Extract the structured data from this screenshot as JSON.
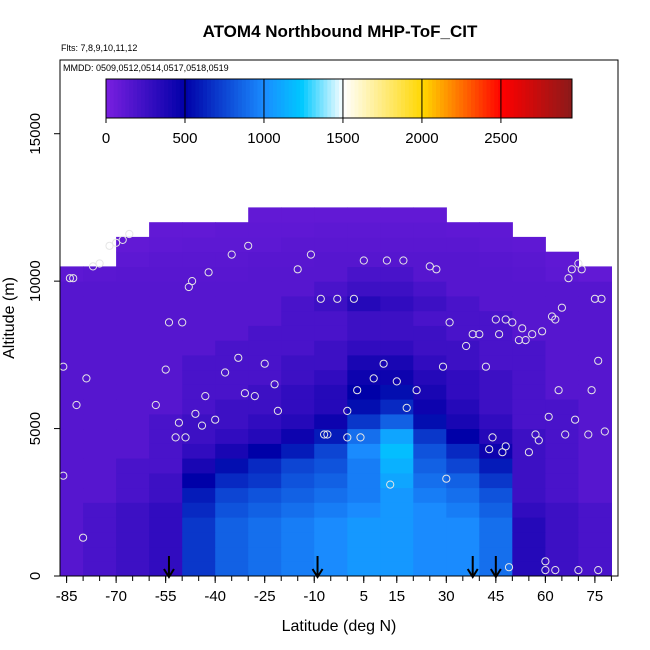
{
  "chart_data": {
    "type": "heatmap",
    "title": "ATOM4 Northbound MHP-ToF_CIT",
    "flights_label": "Flts: 7,8,9,10,11,12",
    "dates_label": "MMDD: 0509,0512,0514,0517,0518,0519",
    "xlabel": "Latitude (deg N)",
    "ylabel": "Altitude (m)",
    "xlim": [
      -87,
      82
    ],
    "ylim": [
      0,
      17500
    ],
    "x_ticks": [
      -85,
      -70,
      -55,
      -40,
      -25,
      -10,
      5,
      15,
      30,
      45,
      60,
      75
    ],
    "x_minor_step": 5,
    "y_ticks": [
      0,
      5000,
      10000,
      15000
    ],
    "colorbar": {
      "ticks": [
        0,
        500,
        1000,
        1500,
        2000,
        2500
      ],
      "range": [
        0,
        2950
      ],
      "colors": [
        "#7a1fe0",
        "#0000a8",
        "#1a8cff",
        "#00c8ff",
        "#ffffff",
        "#ffd700",
        "#ff0000",
        "#8b1a1a"
      ],
      "stops": [
        0,
        0.17,
        0.34,
        0.42,
        0.51,
        0.68,
        0.85,
        1.0
      ]
    },
    "lat_bins": [
      -85,
      -75,
      -65,
      -55,
      -45,
      -35,
      -25,
      -15,
      -5,
      5,
      15,
      25,
      35,
      45,
      55,
      65,
      75
    ],
    "alt_bins": [
      250,
      750,
      1250,
      1750,
      2250,
      2750,
      3250,
      3750,
      4250,
      4750,
      5250,
      5750,
      6250,
      6750,
      7250,
      7750,
      8250,
      8750,
      9250,
      9750,
      10250,
      10750,
      11250,
      11750,
      12250
    ],
    "grid_values": [
      [
        150,
        200,
        250,
        300,
        700,
        850,
        900,
        950,
        1000,
        1050,
        1050,
        1000,
        1000,
        900,
        350,
        250,
        200
      ],
      [
        150,
        200,
        250,
        300,
        700,
        850,
        900,
        950,
        1000,
        1050,
        1050,
        1000,
        1000,
        900,
        350,
        250,
        200
      ],
      [
        150,
        200,
        250,
        300,
        700,
        850,
        900,
        950,
        1000,
        1050,
        1050,
        1000,
        1000,
        900,
        350,
        250,
        200
      ],
      [
        150,
        200,
        250,
        300,
        700,
        850,
        900,
        950,
        1000,
        1050,
        1050,
        1000,
        1000,
        900,
        350,
        250,
        200
      ],
      [
        150,
        200,
        250,
        300,
        650,
        800,
        850,
        900,
        950,
        1000,
        1050,
        1000,
        950,
        850,
        300,
        250,
        200
      ],
      [
        150,
        150,
        200,
        250,
        600,
        750,
        800,
        850,
        900,
        950,
        1050,
        950,
        900,
        800,
        250,
        200,
        150
      ],
      [
        150,
        150,
        200,
        250,
        500,
        650,
        700,
        800,
        850,
        950,
        1100,
        900,
        850,
        700,
        250,
        200,
        150
      ],
      [
        150,
        150,
        200,
        200,
        400,
        550,
        650,
        750,
        800,
        950,
        1150,
        850,
        750,
        600,
        250,
        200,
        150
      ],
      [
        150,
        150,
        150,
        200,
        300,
        400,
        500,
        600,
        750,
        1000,
        1200,
        800,
        650,
        450,
        250,
        200,
        150
      ],
      [
        150,
        150,
        150,
        200,
        250,
        300,
        350,
        450,
        600,
        900,
        1100,
        700,
        500,
        350,
        250,
        200,
        150
      ],
      [
        150,
        150,
        150,
        200,
        250,
        250,
        300,
        350,
        450,
        700,
        850,
        550,
        400,
        300,
        200,
        200,
        150
      ],
      [
        150,
        150,
        150,
        150,
        200,
        250,
        250,
        300,
        350,
        550,
        650,
        450,
        350,
        250,
        200,
        200,
        150
      ],
      [
        150,
        150,
        150,
        150,
        200,
        200,
        250,
        300,
        350,
        500,
        550,
        400,
        300,
        250,
        200,
        150,
        150
      ],
      [
        150,
        150,
        150,
        150,
        200,
        200,
        200,
        250,
        300,
        450,
        450,
        350,
        300,
        250,
        200,
        150,
        150
      ],
      [
        150,
        150,
        150,
        150,
        200,
        200,
        200,
        250,
        250,
        400,
        400,
        300,
        250,
        200,
        200,
        150,
        150
      ],
      [
        150,
        150,
        150,
        150,
        150,
        200,
        200,
        200,
        250,
        300,
        300,
        250,
        250,
        200,
        200,
        150,
        150
      ],
      [
        150,
        150,
        150,
        150,
        150,
        150,
        200,
        200,
        200,
        250,
        250,
        250,
        200,
        200,
        150,
        150,
        150
      ],
      [
        150,
        150,
        150,
        150,
        150,
        150,
        150,
        200,
        200,
        250,
        250,
        200,
        200,
        200,
        150,
        150,
        150
      ],
      [
        150,
        150,
        150,
        150,
        150,
        150,
        150,
        200,
        250,
        350,
        300,
        250,
        200,
        150,
        150,
        150,
        150
      ],
      [
        150,
        150,
        150,
        150,
        150,
        150,
        150,
        150,
        200,
        250,
        250,
        200,
        150,
        150,
        150,
        150,
        150
      ],
      [
        120,
        130,
        140,
        140,
        140,
        140,
        150,
        150,
        150,
        200,
        200,
        150,
        150,
        150,
        140,
        120,
        100
      ],
      [
        null,
        null,
        120,
        130,
        130,
        130,
        140,
        140,
        150,
        150,
        150,
        150,
        150,
        140,
        130,
        110,
        null
      ],
      [
        null,
        null,
        100,
        110,
        120,
        120,
        120,
        130,
        130,
        130,
        130,
        130,
        130,
        120,
        110,
        null,
        null
      ],
      [
        null,
        null,
        null,
        100,
        100,
        110,
        110,
        110,
        120,
        120,
        120,
        120,
        110,
        110,
        null,
        null,
        null
      ],
      [
        null,
        null,
        null,
        null,
        null,
        null,
        100,
        100,
        100,
        100,
        100,
        100,
        null,
        null,
        null,
        null,
        null
      ]
    ],
    "samples": [
      {
        "lat": -86,
        "alt": 7100
      },
      {
        "lat": -86,
        "alt": 3400
      },
      {
        "lat": -84,
        "alt": 10100
      },
      {
        "lat": -83,
        "alt": 10100
      },
      {
        "lat": -82,
        "alt": 5800
      },
      {
        "lat": -80,
        "alt": 1300
      },
      {
        "lat": -79,
        "alt": 6700
      },
      {
        "lat": -77,
        "alt": 10500
      },
      {
        "lat": -75,
        "alt": 10600
      },
      {
        "lat": -72,
        "alt": 11200
      },
      {
        "lat": -70,
        "alt": 11300
      },
      {
        "lat": -68,
        "alt": 11400
      },
      {
        "lat": -66,
        "alt": 11600
      },
      {
        "lat": -58,
        "alt": 5800
      },
      {
        "lat": -55,
        "alt": 7000
      },
      {
        "lat": -54,
        "alt": 8600
      },
      {
        "lat": -52,
        "alt": 4700
      },
      {
        "lat": -51,
        "alt": 5200
      },
      {
        "lat": -50,
        "alt": 8600
      },
      {
        "lat": -49,
        "alt": 4700
      },
      {
        "lat": -48,
        "alt": 9800
      },
      {
        "lat": -47,
        "alt": 10000
      },
      {
        "lat": -46,
        "alt": 5500
      },
      {
        "lat": -44,
        "alt": 5100
      },
      {
        "lat": -43,
        "alt": 6100
      },
      {
        "lat": -42,
        "alt": 10300
      },
      {
        "lat": -40,
        "alt": 5300
      },
      {
        "lat": -37,
        "alt": 6900
      },
      {
        "lat": -35,
        "alt": 10900
      },
      {
        "lat": -33,
        "alt": 7400
      },
      {
        "lat": -31,
        "alt": 6200
      },
      {
        "lat": -30,
        "alt": 11200
      },
      {
        "lat": -28,
        "alt": 6100
      },
      {
        "lat": -25,
        "alt": 7200
      },
      {
        "lat": -22,
        "alt": 6500
      },
      {
        "lat": -21,
        "alt": 5600
      },
      {
        "lat": -15,
        "alt": 10400
      },
      {
        "lat": -11,
        "alt": 10900
      },
      {
        "lat": -8,
        "alt": 9400
      },
      {
        "lat": -7,
        "alt": 4800
      },
      {
        "lat": -6,
        "alt": 4800
      },
      {
        "lat": -3,
        "alt": 9400
      },
      {
        "lat": 0,
        "alt": 5600
      },
      {
        "lat": 0,
        "alt": 4700
      },
      {
        "lat": 2,
        "alt": 9400
      },
      {
        "lat": 3,
        "alt": 6300
      },
      {
        "lat": 4,
        "alt": 4700
      },
      {
        "lat": 5,
        "alt": 10700
      },
      {
        "lat": 8,
        "alt": 6700
      },
      {
        "lat": 11,
        "alt": 7200
      },
      {
        "lat": 12,
        "alt": 10700
      },
      {
        "lat": 13,
        "alt": 3100
      },
      {
        "lat": 15,
        "alt": 6600
      },
      {
        "lat": 17,
        "alt": 10700
      },
      {
        "lat": 18,
        "alt": 5700
      },
      {
        "lat": 21,
        "alt": 6300
      },
      {
        "lat": 25,
        "alt": 10500
      },
      {
        "lat": 27,
        "alt": 10400
      },
      {
        "lat": 29,
        "alt": 7100
      },
      {
        "lat": 30,
        "alt": 3300
      },
      {
        "lat": 31,
        "alt": 8600
      },
      {
        "lat": 36,
        "alt": 7800
      },
      {
        "lat": 38,
        "alt": 8200
      },
      {
        "lat": 40,
        "alt": 8200
      },
      {
        "lat": 42,
        "alt": 7100
      },
      {
        "lat": 43,
        "alt": 4300
      },
      {
        "lat": 44,
        "alt": 4700
      },
      {
        "lat": 45,
        "alt": 8700
      },
      {
        "lat": 46,
        "alt": 8200
      },
      {
        "lat": 47,
        "alt": 4200
      },
      {
        "lat": 48,
        "alt": 8700
      },
      {
        "lat": 48,
        "alt": 4400
      },
      {
        "lat": 49,
        "alt": 300
      },
      {
        "lat": 50,
        "alt": 8600
      },
      {
        "lat": 52,
        "alt": 8000
      },
      {
        "lat": 53,
        "alt": 8400
      },
      {
        "lat": 54,
        "alt": 8000
      },
      {
        "lat": 55,
        "alt": 4200
      },
      {
        "lat": 56,
        "alt": 8200
      },
      {
        "lat": 57,
        "alt": 4800
      },
      {
        "lat": 58,
        "alt": 4600
      },
      {
        "lat": 59,
        "alt": 8300
      },
      {
        "lat": 60,
        "alt": 500
      },
      {
        "lat": 60,
        "alt": 200
      },
      {
        "lat": 61,
        "alt": 5400
      },
      {
        "lat": 62,
        "alt": 8800
      },
      {
        "lat": 63,
        "alt": 8700
      },
      {
        "lat": 63,
        "alt": 200
      },
      {
        "lat": 64,
        "alt": 6300
      },
      {
        "lat": 65,
        "alt": 9100
      },
      {
        "lat": 66,
        "alt": 4800
      },
      {
        "lat": 67,
        "alt": 10100
      },
      {
        "lat": 68,
        "alt": 10400
      },
      {
        "lat": 69,
        "alt": 5300
      },
      {
        "lat": 70,
        "alt": 10600
      },
      {
        "lat": 70,
        "alt": 200
      },
      {
        "lat": 71,
        "alt": 10400
      },
      {
        "lat": 73,
        "alt": 4800
      },
      {
        "lat": 74,
        "alt": 6300
      },
      {
        "lat": 75,
        "alt": 9400
      },
      {
        "lat": 76,
        "alt": 7300
      },
      {
        "lat": 76,
        "alt": 200
      },
      {
        "lat": 77,
        "alt": 9400
      },
      {
        "lat": 78,
        "alt": 4900
      }
    ],
    "arrows_lat": [
      -54,
      -9,
      38,
      45
    ]
  }
}
